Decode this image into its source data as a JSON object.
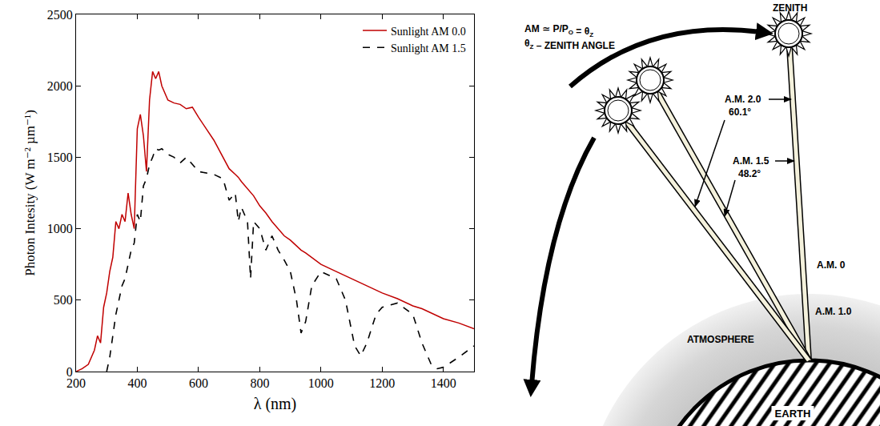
{
  "chart_data": {
    "type": "line",
    "xlabel": "λ (nm)",
    "ylabel": "Photon Intesity (W m⁻² µm⁻¹)",
    "x": [
      200,
      220,
      240,
      260,
      270,
      280,
      290,
      300,
      310,
      320,
      330,
      340,
      350,
      360,
      370,
      380,
      390,
      400,
      410,
      420,
      430,
      440,
      450,
      460,
      470,
      480,
      500,
      520,
      540,
      560,
      580,
      600,
      650,
      680,
      700,
      720,
      730,
      740,
      760,
      770,
      780,
      800,
      820,
      840,
      860,
      880,
      900,
      920,
      935,
      950,
      970,
      1000,
      1050,
      1080,
      1110,
      1130,
      1150,
      1180,
      1200,
      1250,
      1300,
      1330,
      1360,
      1380,
      1400,
      1450,
      1500
    ],
    "series": [
      {
        "name": "Sunlight AM 0.0",
        "color": "#c00000",
        "line_style": "solid",
        "values": [
          0,
          20,
          50,
          150,
          250,
          200,
          450,
          550,
          700,
          800,
          1050,
          1000,
          1100,
          1050,
          1250,
          1100,
          1000,
          1700,
          1800,
          1650,
          1400,
          1900,
          2100,
          2050,
          2100,
          2000,
          1900,
          1880,
          1870,
          1840,
          1850,
          1780,
          1620,
          1500,
          1420,
          1380,
          1360,
          1330,
          1280,
          1250,
          1230,
          1160,
          1110,
          1050,
          1000,
          950,
          920,
          880,
          850,
          830,
          800,
          750,
          700,
          670,
          640,
          620,
          600,
          570,
          550,
          510,
          460,
          440,
          410,
          390,
          370,
          340,
          300
        ]
      },
      {
        "name": "Sunlight AM 1.5",
        "color": "#000000",
        "line_style": "dash",
        "values": [
          null,
          null,
          null,
          null,
          null,
          null,
          null,
          0,
          100,
          250,
          400,
          500,
          600,
          650,
          750,
          850,
          900,
          1100,
          1050,
          1300,
          1350,
          1450,
          1500,
          1560,
          1550,
          1560,
          1520,
          1500,
          1460,
          1500,
          1450,
          1400,
          1380,
          1350,
          1200,
          1250,
          1050,
          1150,
          1050,
          650,
          1050,
          1000,
          850,
          950,
          850,
          780,
          700,
          500,
          270,
          350,
          600,
          700,
          650,
          500,
          180,
          110,
          200,
          400,
          450,
          480,
          400,
          200,
          50,
          20,
          30,
          100,
          180
        ]
      }
    ],
    "xlim": [
      200,
      1500
    ],
    "ylim": [
      0,
      2500
    ],
    "xticks": [
      200,
      400,
      600,
      800,
      1000,
      1200,
      1400
    ],
    "yticks": [
      0,
      500,
      1000,
      1500,
      2000,
      2500
    ],
    "grid": false,
    "legend": "upper right"
  },
  "diagram": {
    "formula": [
      {
        "text": "AM ≃ P/P"
      },
      {
        "sub": "O"
      },
      {
        "text": " = θ"
      },
      {
        "sub": "Z"
      }
    ],
    "angle_note": [
      {
        "text": "θ"
      },
      {
        "sub": "Z"
      },
      {
        "text": " – ZENITH ANGLE"
      }
    ],
    "zenith": "ZENITH",
    "am2": "A.M. 2.0",
    "am2_angle": "60.1°",
    "am15": "A.M. 1.5",
    "am15_angle": "48.2°",
    "am0": "A.M. 0",
    "am1": "A.M. 1.0",
    "atmosphere": "ATMOSPHERE",
    "earth": "EARTH"
  }
}
